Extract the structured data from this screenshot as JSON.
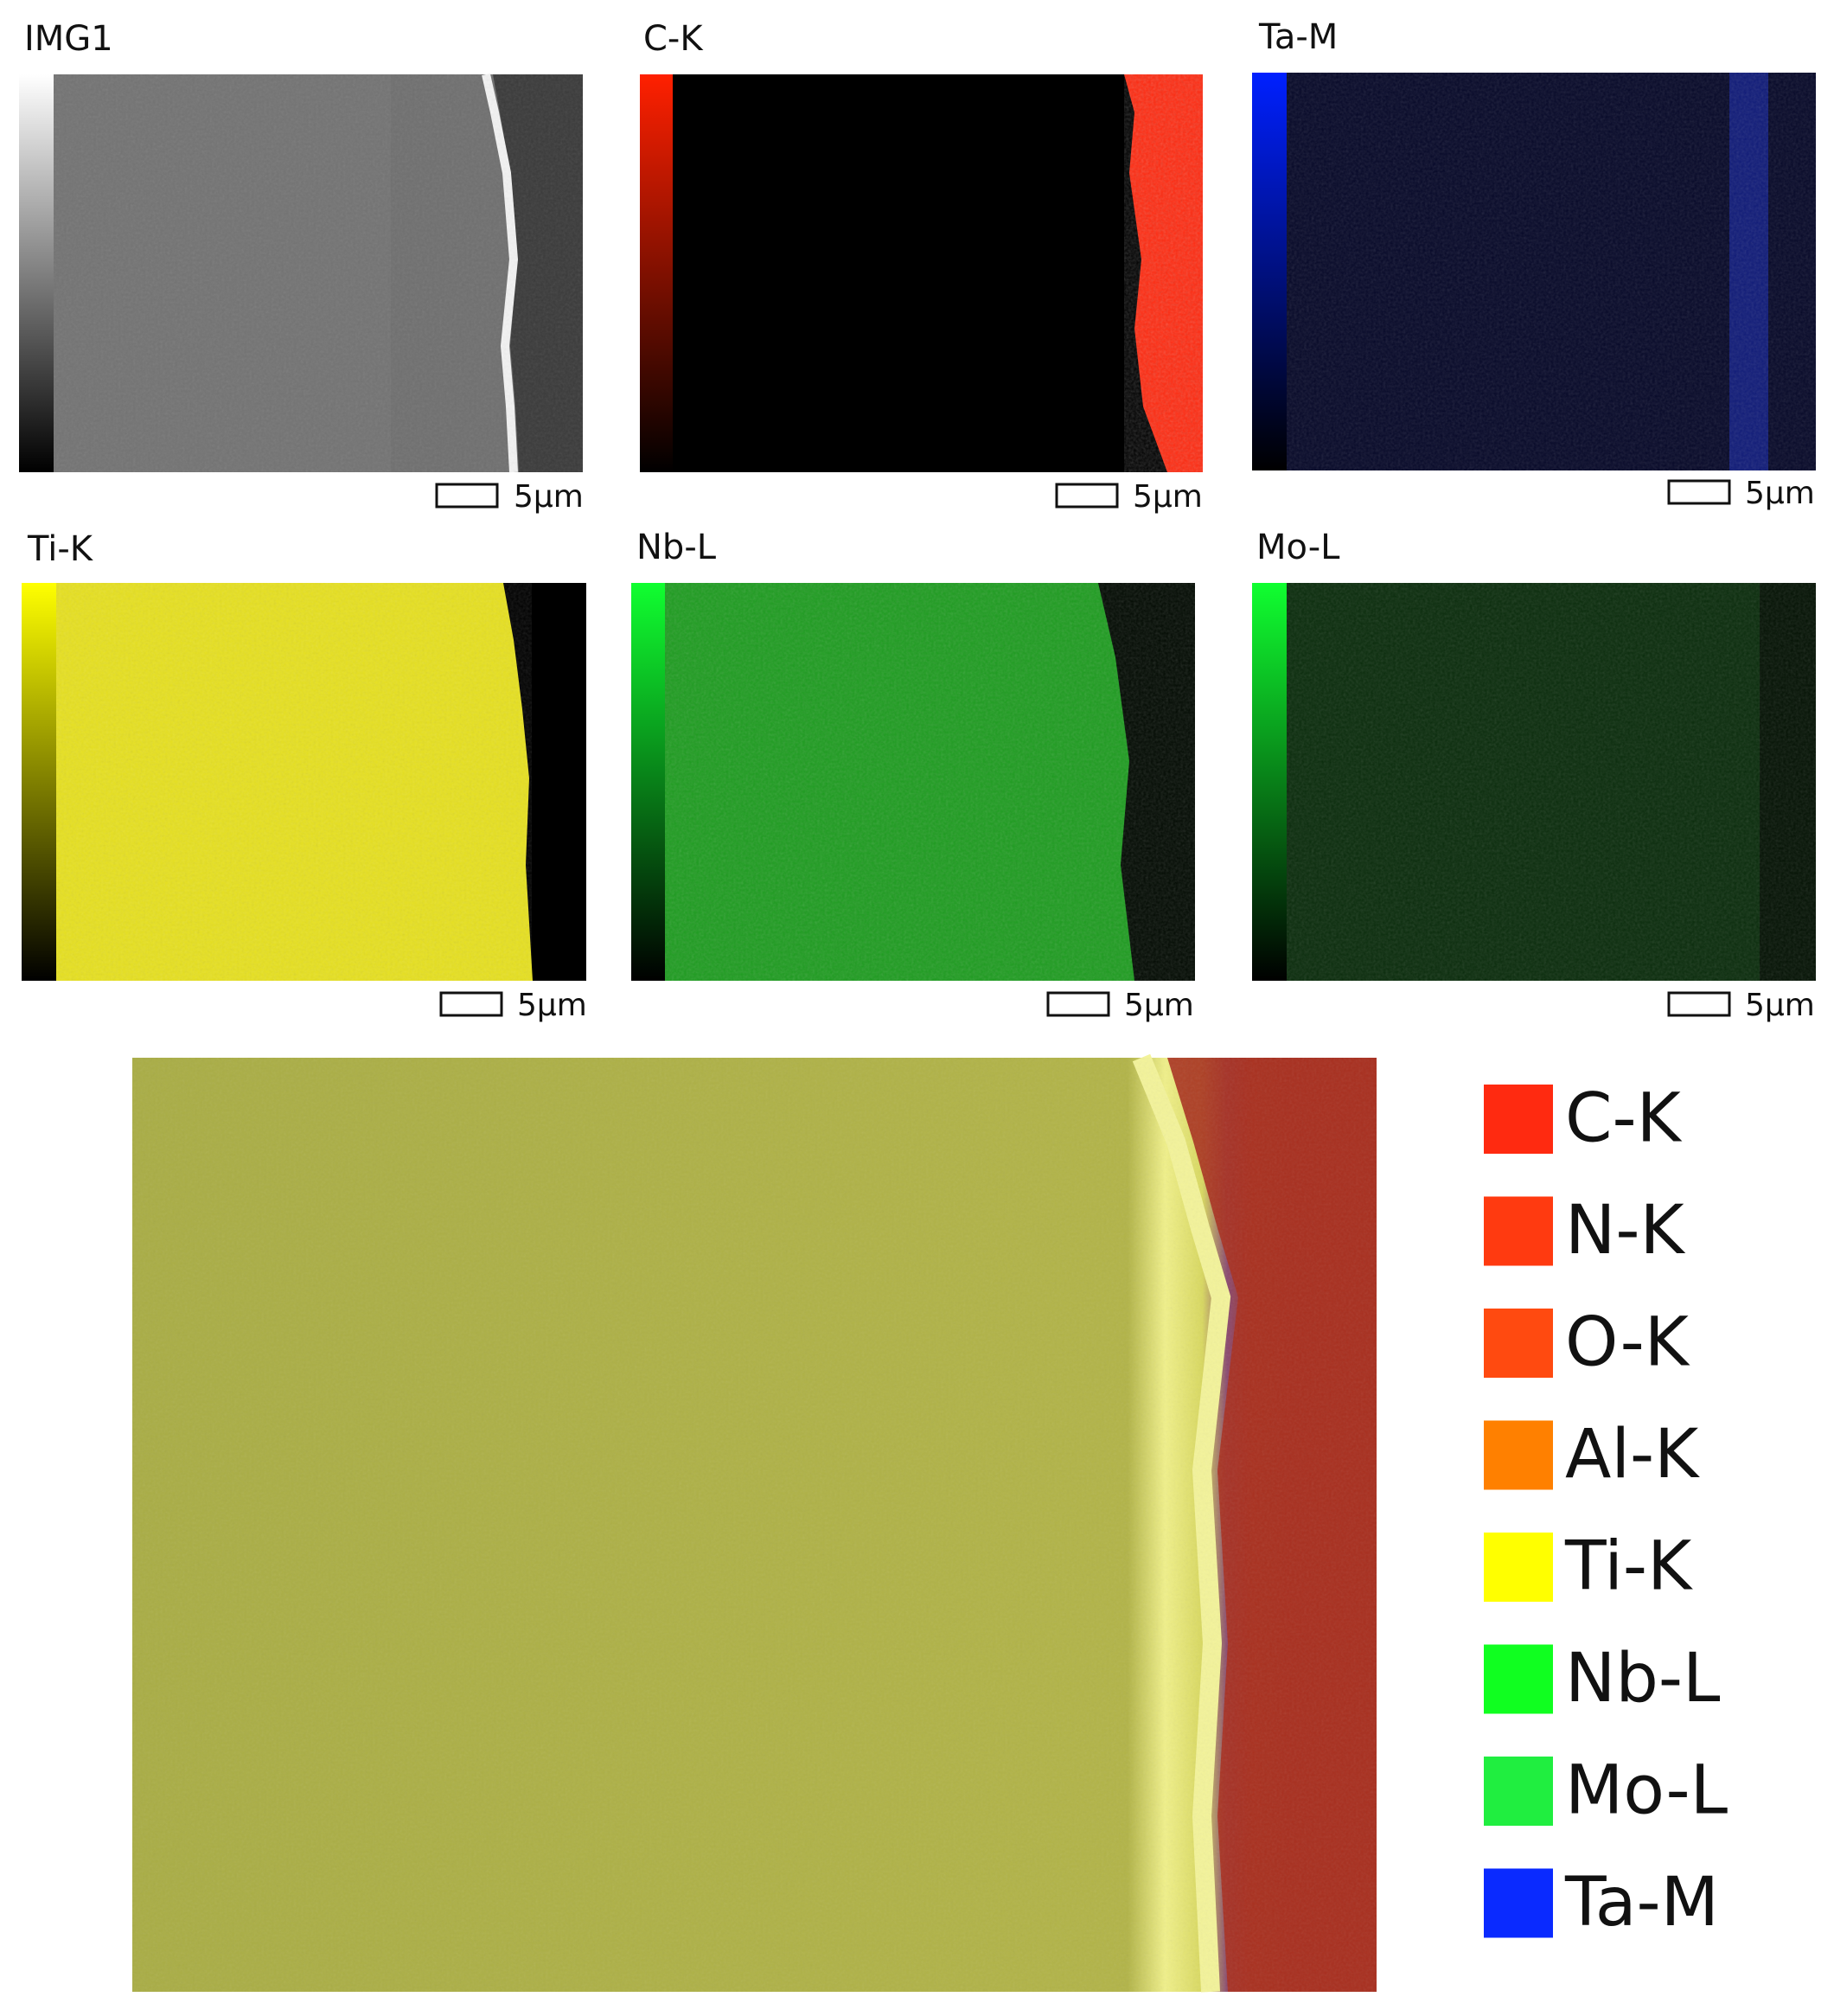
{
  "panels": [
    {
      "label": "IMG1",
      "scale": "5µm"
    },
    {
      "label": "C-K",
      "scale": "5µm"
    },
    {
      "label": "Ta-M",
      "scale": "5µm"
    },
    {
      "label": "Ti-K",
      "scale": "5µm"
    },
    {
      "label": "Nb-L",
      "scale": "5µm"
    },
    {
      "label": "Mo-L",
      "scale": "5µm"
    }
  ],
  "legend": [
    {
      "name": "C-K",
      "color": "#ff2a10"
    },
    {
      "name": "N-K",
      "color": "#ff3a10"
    },
    {
      "name": "O-K",
      "color": "#ff4a10"
    },
    {
      "name": "Al-K",
      "color": "#ff8000"
    },
    {
      "name": "Ti-K",
      "color": "#ffff00"
    },
    {
      "name": "Nb-L",
      "color": "#10ff20"
    },
    {
      "name": "Mo-L",
      "color": "#20ee40"
    },
    {
      "name": "Ta-M",
      "color": "#0a2aff"
    }
  ]
}
